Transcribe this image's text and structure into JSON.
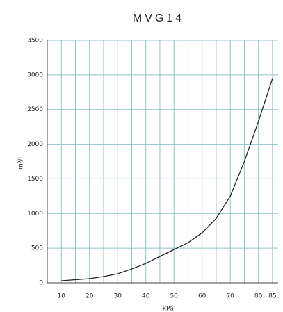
{
  "chart_data": {
    "type": "line",
    "title": "MVG14",
    "y_label": "m³/l",
    "x_label": "-kPa",
    "x": [
      10,
      15,
      20,
      25,
      30,
      35,
      40,
      45,
      50,
      55,
      60,
      65,
      70,
      75,
      80,
      85
    ],
    "series": [
      {
        "name": "MVG14",
        "color": "#222222",
        "values": [
          30,
          45,
          60,
          90,
          130,
          200,
          280,
          380,
          480,
          580,
          720,
          930,
          1250,
          1750,
          2330,
          2950
        ]
      }
    ],
    "xlim": [
      5,
      87
    ],
    "ylim": [
      0,
      3500
    ],
    "xticks": [
      10,
      20,
      30,
      40,
      50,
      60,
      70,
      80,
      85
    ],
    "xgrid": [
      15,
      25,
      35,
      45,
      55,
      65,
      75
    ],
    "yticks": [
      0,
      500,
      1000,
      1500,
      2000,
      2500,
      3000,
      3500
    ],
    "grid": true
  }
}
